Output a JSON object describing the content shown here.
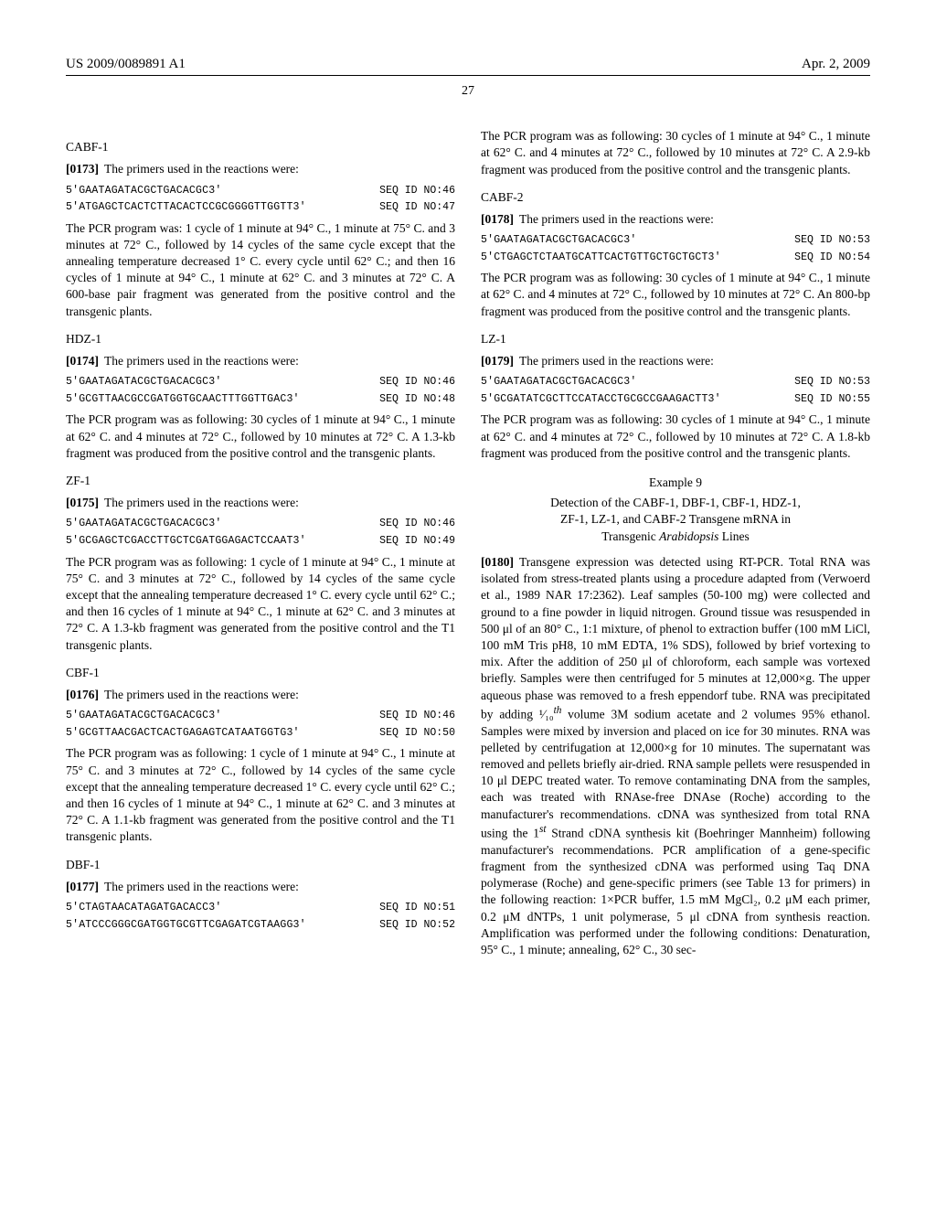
{
  "header": {
    "pub_no": "US 2009/0089891 A1",
    "date": "Apr. 2, 2009"
  },
  "page_number": "27",
  "left_column": {
    "cabf1": {
      "head": "CABF-1",
      "para_num": "[0173]",
      "para_text": "The primers used in the reactions were:",
      "seq1": "5'GAATAGATACGCTGACACGC3'",
      "seq1_id": "SEQ ID NO:46",
      "seq2": "5'ATGAGCTCACTCTTACACTCCGCGGGGTTGGTT3'",
      "seq2_id": "SEQ ID NO:47",
      "desc": "The PCR program was: 1 cycle of 1 minute at 94° C., 1 minute at 75° C. and 3 minutes at 72° C., followed by 14 cycles of the same cycle except that the annealing temperature decreased 1° C. every cycle until 62° C.; and then 16 cycles of 1 minute at 94° C., 1 minute at 62° C. and 3 minutes at 72° C. A 600-base pair fragment was generated from the positive control and the transgenic plants."
    },
    "hdz1": {
      "head": "HDZ-1",
      "para_num": "[0174]",
      "para_text": "The primers used in the reactions were:",
      "seq1": "5'GAATAGATACGCTGACACGC3'",
      "seq1_id": "SEQ ID NO:46",
      "seq2": "5'GCGTTAACGCCGATGGTGCAACTTTGGTTGAC3'",
      "seq2_id": "SEQ ID NO:48",
      "desc": "The PCR program was as following: 30 cycles of 1 minute at 94° C., 1 minute at 62° C. and 4 minutes at 72° C., followed by 10 minutes at 72° C. A 1.3-kb fragment was produced from the positive control and the transgenic plants."
    },
    "zf1": {
      "head": "ZF-1",
      "para_num": "[0175]",
      "para_text": "The primers used in the reactions were:",
      "seq1": "5'GAATAGATACGCTGACACGC3'",
      "seq1_id": "SEQ ID NO:46",
      "seq2": "5'GCGAGCTCGACCTTGCTCGATGGAGACTCCAAT3'",
      "seq2_id": "SEQ ID NO:49",
      "desc": "The PCR program was as following: 1 cycle of 1 minute at 94° C., 1 minute at 75° C. and 3 minutes at 72° C., followed by 14 cycles of the same cycle except that the annealing temperature decreased 1° C. every cycle until 62° C.; and then 16 cycles of 1 minute at 94° C., 1 minute at 62° C. and 3 minutes at 72° C. A 1.3-kb fragment was generated from the positive control and the T1 transgenic plants."
    },
    "cbf1": {
      "head": "CBF-1",
      "para_num": "[0176]",
      "para_text": "The primers used in the reactions were:",
      "seq1": "5'GAATAGATACGCTGACACGC3'",
      "seq1_id": "SEQ ID NO:46",
      "seq2": "5'GCGTTAACGACTCACTGAGAGTCATAATGGTG3'",
      "seq2_id": "SEQ ID NO:50",
      "desc": "The PCR program was as following: 1 cycle of 1 minute at 94° C., 1 minute at 75° C. and 3 minutes at 72° C., followed by 14 cycles of the same cycle except that the annealing temperature decreased 1° C. every cycle until 62° C.; and then 16 cycles of 1 minute at 94° C., 1 minute at 62° C. and 3 minutes at 72° C. A 1.1-kb fragment was generated from the positive control and the T1 transgenic plants."
    },
    "dbf1": {
      "head": "DBF-1",
      "para_num": "[0177]",
      "para_text": "The primers used in the reactions were:",
      "seq1": "5'CTAGTAACATAGATGACACC3'",
      "seq1_id": "SEQ ID NO:51",
      "seq2": "5'ATCCCGGGCGATGGTGCGTTCGAGATCGTAAGG3'",
      "seq2_id": "SEQ ID NO:52"
    }
  },
  "right_column": {
    "dbf1_cont": "The PCR program was as following: 30 cycles of 1 minute at 94° C., 1 minute at 62° C. and 4 minutes at 72° C., followed by 10 minutes at 72° C. A 2.9-kb fragment was produced from the positive control and the transgenic plants.",
    "cabf2": {
      "head": "CABF-2",
      "para_num": "[0178]",
      "para_text": "The primers used in the reactions were:",
      "seq1": "5'GAATAGATACGCTGACACGC3'",
      "seq1_id": "SEQ ID NO:53",
      "seq2": "5'CTGAGCTCTAATGCATTCACTGTTGCTGCTGCT3'",
      "seq2_id": "SEQ ID NO:54",
      "desc": "The PCR program was as following: 30 cycles of 1 minute at 94° C., 1 minute at 62° C. and 4 minutes at 72° C., followed by 10 minutes at 72° C. An 800-bp fragment was produced from the positive control and the transgenic plants."
    },
    "lz1": {
      "head": "LZ-1",
      "para_num": "[0179]",
      "para_text": "The primers used in the reactions were:",
      "seq1": "5'GAATAGATACGCTGACACGC3'",
      "seq1_id": "SEQ ID NO:53",
      "seq2": "5'GCGATATCGCTTCCATACCTGCGCCGAAGACTT3'",
      "seq2_id": "SEQ ID NO:55",
      "desc": "The PCR program was as following: 30 cycles of 1 minute at 94° C., 1 minute at 62° C. and 4 minutes at 72° C., followed by 10 minutes at 72° C. A 1.8-kb fragment was produced from the positive control and the transgenic plants."
    },
    "example9": {
      "head": "Example 9",
      "title_l1": "Detection of the CABF-1, DBF-1, CBF-1, HDZ-1,",
      "title_l2": "ZF-1, LZ-1, and CABF-2 Transgene mRNA in",
      "title_l3_a": "Transgenic ",
      "title_l3_b": "Arabidopsis",
      "title_l3_c": " Lines",
      "para_num": "[0180]",
      "body_a": "Transgene expression was detected using RT-PCR. Total RNA was isolated from stress-treated plants using a procedure adapted from (Verwoerd et al., 1989 NAR 17:2362). Leaf samples (50-100 mg) were collected and ground to a fine powder in liquid nitrogen. Ground tissue was resuspended in 500 μl of an 80° C., 1:1 mixture, of phenol to extraction buffer (100 mM LiCl, 100 mM Tris pH8, 10 mM EDTA, 1% SDS), followed by brief vortexing to mix. After the addition of 250 μl of chloroform, each sample was vortexed briefly. Samples were then centrifuged for 5 minutes at 12,000×g. The upper aqueous phase was removed to a fresh eppendorf tube. RNA was precipitated by adding ¹⁄₁₀",
      "body_b": " volume 3M sodium acetate and 2 volumes 95% ethanol. Samples were mixed by inversion and placed on ice for 30 minutes. RNA was pelleted by centrifugation at 12,000×g for 10 minutes. The supernatant was removed and pellets briefly air-dried. RNA sample pellets were resuspended in 10 μl DEPC treated water. To remove contaminating DNA from the samples, each was treated with RNAse-free DNAse (Roche) according to the manufacturer's recommendations. cDNA was synthesized from total RNA using the 1",
      "body_c": " Strand cDNA synthesis kit (Boehringer Mannheim) following manufacturer's recommendations. PCR amplification of a gene-specific fragment from the synthesized cDNA was performed using Taq DNA polymerase (Roche) and gene-specific primers (see Table 13 for primers) in the following reaction: 1×PCR buffer, 1.5 mM MgCl₂, 0.2 μM each primer, 0.2 μM dNTPs, 1 unit polymerase, 5 μl cDNA from synthesis reaction. Amplification was performed under the following conditions: Denaturation, 95° C., 1 minute; annealing, 62° C., 30 sec-"
    }
  }
}
